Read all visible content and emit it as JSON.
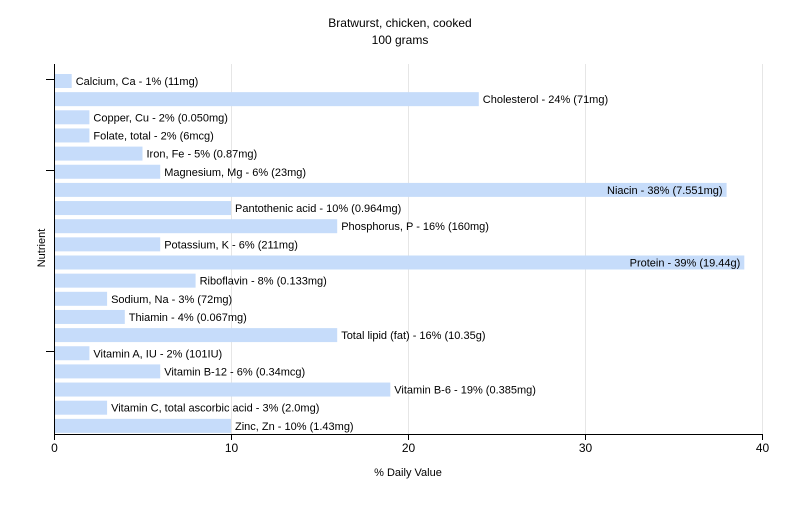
{
  "colors": {
    "background": "#ffffff",
    "bar": "#c6dcfa",
    "grid": "#e6e6e6",
    "axis": "#000000",
    "text": "#000000"
  },
  "chart_data": {
    "type": "bar",
    "orientation": "horizontal",
    "title": "Bratwurst, chicken, cooked",
    "subtitle": "100 grams",
    "xlabel": "% Daily Value",
    "ylabel": "Nutrient",
    "xlim": [
      0,
      40
    ],
    "xticks": [
      0,
      10,
      20,
      30,
      40
    ],
    "grid": true,
    "categories": [
      "Calcium, Ca",
      "Cholesterol",
      "Copper, Cu",
      "Folate, total",
      "Iron, Fe",
      "Magnesium, Mg",
      "Niacin",
      "Pantothenic acid",
      "Phosphorus, P",
      "Potassium, K",
      "Protein",
      "Riboflavin",
      "Sodium, Na",
      "Thiamin",
      "Total lipid (fat)",
      "Vitamin A, IU",
      "Vitamin B-12",
      "Vitamin B-6",
      "Vitamin C, total ascorbic acid",
      "Zinc, Zn"
    ],
    "values": [
      1,
      24,
      2,
      2,
      5,
      6,
      38,
      10,
      16,
      6,
      39,
      8,
      3,
      4,
      16,
      2,
      6,
      19,
      3,
      10
    ],
    "labels": [
      "Calcium, Ca - 1% (11mg)",
      "Cholesterol - 24% (71mg)",
      "Copper, Cu - 2% (0.050mg)",
      "Folate, total - 2% (6mcg)",
      "Iron, Fe - 5% (0.87mg)",
      "Magnesium, Mg - 6% (23mg)",
      "Niacin - 38% (7.551mg)",
      "Pantothenic acid - 10% (0.964mg)",
      "Phosphorus, P - 16% (160mg)",
      "Potassium, K - 6% (211mg)",
      "Protein - 39% (19.44g)",
      "Riboflavin - 8% (0.133mg)",
      "Sodium, Na - 3% (72mg)",
      "Thiamin - 4% (0.067mg)",
      "Total lipid (fat) - 16% (10.35g)",
      "Vitamin A, IU - 2% (101IU)",
      "Vitamin B-12 - 6% (0.34mcg)",
      "Vitamin B-6 - 19% (0.385mg)",
      "Vitamin C, total ascorbic acid - 3% (2.0mg)",
      "Zinc, Zn - 10% (1.43mg)"
    ]
  }
}
